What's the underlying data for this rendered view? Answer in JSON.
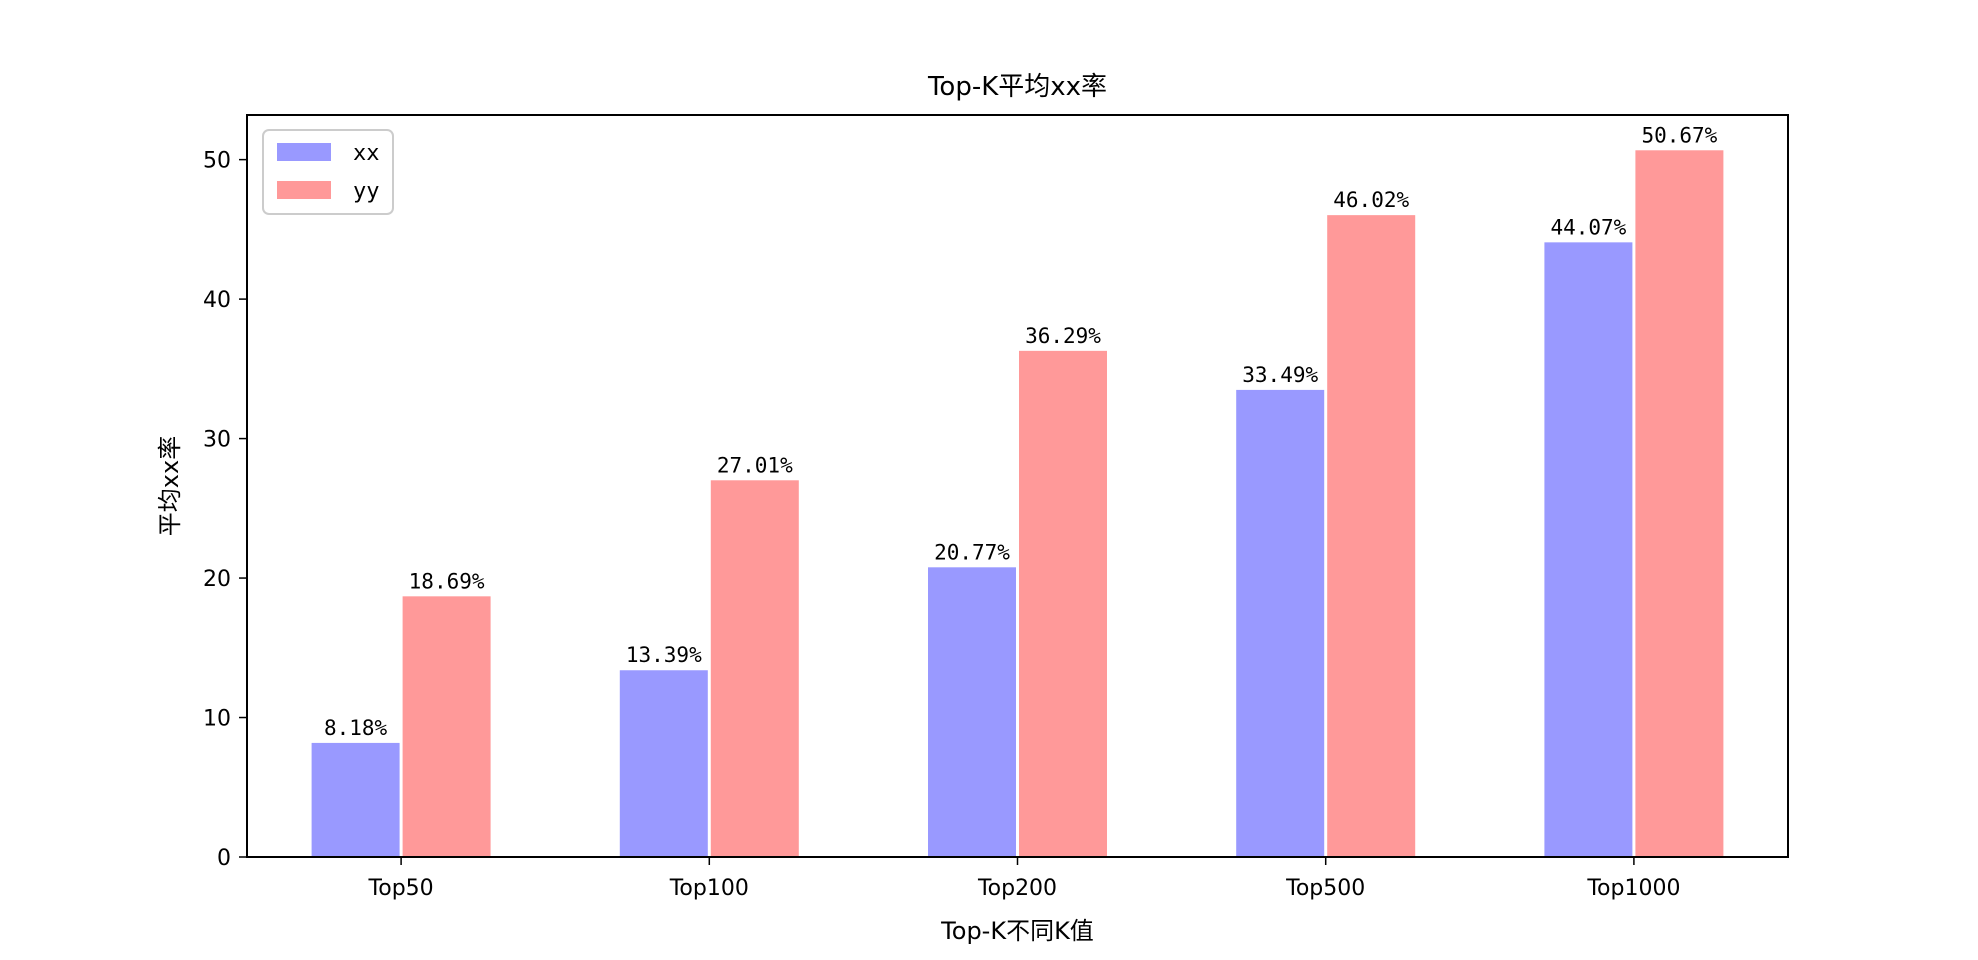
{
  "chart_data": {
    "type": "bar",
    "title": "Top-K平均xx率",
    "xlabel": "Top-K不同K值",
    "ylabel": "平均xx率",
    "categories": [
      "Top50",
      "Top100",
      "Top200",
      "Top500",
      "Top1000"
    ],
    "series": [
      {
        "name": "xx",
        "values": [
          8.18,
          13.39,
          20.77,
          33.49,
          44.07
        ],
        "labels": [
          "8.18%",
          "13.39%",
          "20.77%",
          "33.49%",
          "44.07%"
        ],
        "color": "#9999ff"
      },
      {
        "name": "yy",
        "values": [
          18.69,
          27.01,
          36.29,
          46.02,
          50.67
        ],
        "labels": [
          "18.69%",
          "27.01%",
          "36.29%",
          "46.02%",
          "50.67%"
        ],
        "color": "#ff9999"
      }
    ],
    "ylim": [
      0,
      53.2
    ],
    "yticks": [
      0,
      10,
      20,
      30,
      40,
      50
    ],
    "ytick_labels": [
      "0",
      "10",
      "20",
      "30",
      "40",
      "50"
    ],
    "legend": "top-left",
    "grid": false
  }
}
